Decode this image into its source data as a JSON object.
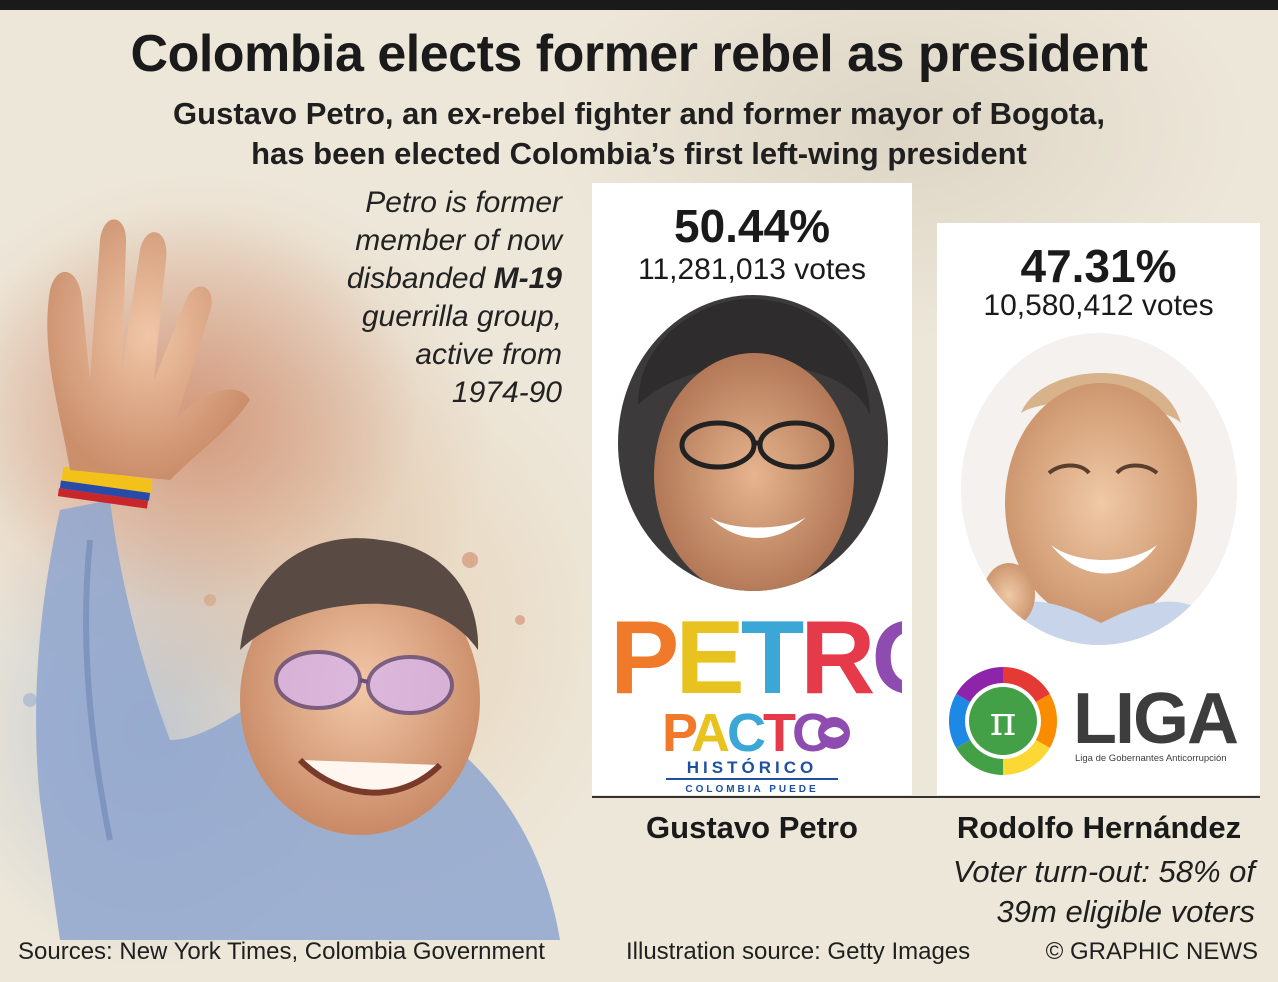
{
  "header": {
    "title": "Colombia elects former rebel as president",
    "subtitle_line1": "Gustavo Petro, an ex-rebel fighter and former mayor of Bogota,",
    "subtitle_line2": "has been elected Colombia’s first left-wing president"
  },
  "note": {
    "line1": "Petro is former",
    "line2": "member of now",
    "line3_prefix": "disbanded ",
    "line3_bold": "M-19",
    "line4": "guerrilla group,",
    "line5": "active from",
    "line6": "1974-90"
  },
  "chart_data": {
    "type": "bar",
    "categories": [
      "Gustavo Petro",
      "Rodolfo Hernández"
    ],
    "values": [
      50.44,
      47.31
    ],
    "vote_counts": [
      11281013,
      10580412
    ]
  },
  "candidates": [
    {
      "name": "Gustavo Petro",
      "percent": "50.44%",
      "votes": "11,281,013 votes"
    },
    {
      "name": "Rodolfo Hernández",
      "percent": "47.31%",
      "votes": "10,580,412 votes"
    }
  ],
  "logos": {
    "petro_word": "PETRO",
    "pacto_word": "PACTO",
    "historico": "HISTÓRICO",
    "colombia_puede": "COLOMBIA PUEDE",
    "liga_word": "LIGA",
    "liga_tagline": "Liga de Gobernantes Anticorrupción",
    "liga_symbol": "π"
  },
  "turnout": {
    "line1": "Voter turn-out: 58% of",
    "line2": "39m eligible voters"
  },
  "footer": {
    "sources": "Sources: New York Times, Colombia Government",
    "illustration_source": "Illustration source: Getty Images",
    "credit": "© GRAPHIC NEWS"
  },
  "colors": {
    "background": "#ede7d9",
    "petro_logo": [
      "#f07a2a",
      "#e8c320",
      "#3aa7d6",
      "#e63a4a",
      "#8e4bb0"
    ],
    "liga_ring": [
      "#e53935",
      "#fb8c00",
      "#fdd835",
      "#43a047",
      "#1e88e5",
      "#8e24aa"
    ],
    "liga_text": "#3d3d3d"
  }
}
